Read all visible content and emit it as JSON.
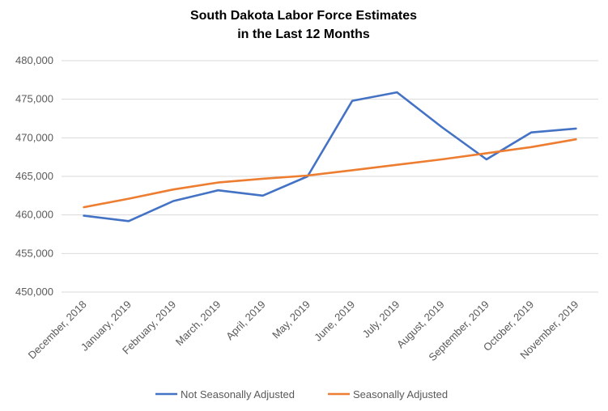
{
  "chart_data": {
    "type": "line",
    "title": "South Dakota Labor Force Estimates",
    "subtitle": "in the Last 12 Months",
    "xlabel": "",
    "ylabel": "",
    "categories": [
      "December, 2018",
      "January, 2019",
      "February, 2019",
      "March, 2019",
      "April, 2019",
      "May, 2019",
      "June, 2019",
      "July, 2019",
      "August, 2019",
      "September, 2019",
      "October, 2019",
      "November, 2019"
    ],
    "ylim": [
      450000,
      480000
    ],
    "yticks": [
      450000,
      455000,
      460000,
      465000,
      470000,
      475000,
      480000
    ],
    "ytick_labels": [
      "450,000",
      "455,000",
      "460,000",
      "465,000",
      "470,000",
      "475,000",
      "480,000"
    ],
    "grid": true,
    "legend_position": "bottom",
    "series": [
      {
        "name": "Not Seasonally Adjusted",
        "color": "#4472c4",
        "values": [
          459900,
          459200,
          461800,
          463200,
          462500,
          465000,
          474800,
          475900,
          471400,
          467200,
          470700,
          471200
        ]
      },
      {
        "name": "Seasonally Adjusted",
        "color": "#ed7d31",
        "values": [
          461000,
          462100,
          463300,
          464200,
          464700,
          465100,
          465800,
          466500,
          467200,
          468000,
          468800,
          469800
        ]
      }
    ]
  }
}
